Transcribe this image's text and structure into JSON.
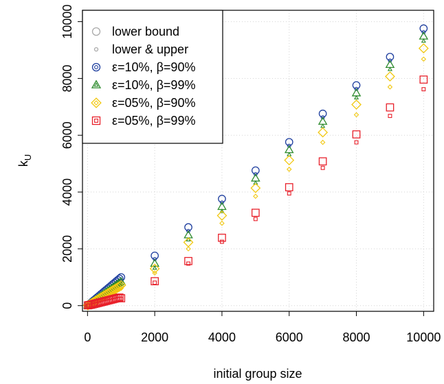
{
  "chart_data": {
    "type": "scatter",
    "xlabel": "initial group size",
    "ylabel": "k",
    "ylabel_sub": "U",
    "xlim": [
      -150,
      10300
    ],
    "ylim": [
      -200,
      10400
    ],
    "x_ticks": [
      0,
      2000,
      4000,
      6000,
      8000,
      10000
    ],
    "x_tick_labels": [
      "0",
      "2000",
      "4000",
      "6000",
      "8000",
      "10000"
    ],
    "y_ticks": [
      0,
      2000,
      4000,
      6000,
      8000,
      10000
    ],
    "y_tick_labels": [
      "0",
      "2000",
      "4000",
      "6000",
      "8000",
      "10000"
    ],
    "grid": true,
    "legend_position": "top-left",
    "x": [
      10,
      50,
      100,
      150,
      200,
      250,
      300,
      350,
      400,
      450,
      500,
      550,
      600,
      650,
      700,
      750,
      800,
      850,
      900,
      950,
      1000,
      2000,
      3000,
      4000,
      5000,
      6000,
      7000,
      8000,
      9000,
      10000
    ],
    "legend": [
      {
        "label": "lower bound",
        "color": "#aaaaaa",
        "marker": "circle"
      },
      {
        "label": "lower & upper",
        "color": "#aaaaaa",
        "marker": "small-circle"
      },
      {
        "label": "ε=10%, β=90%",
        "color": "#1f3f9f",
        "marker": "double-circle"
      },
      {
        "label": "ε=10%, β=99%",
        "color": "#2e8b2e",
        "marker": "double-triangle"
      },
      {
        "label": "ε=05%, β=90%",
        "color": "#f2c811",
        "marker": "double-diamond"
      },
      {
        "label": "ε=05%, β=99%",
        "color": "#e8202a",
        "marker": "double-square"
      }
    ],
    "series": [
      {
        "name": "ε=10%, β=90%",
        "color": "#1f3f9f",
        "marker": "circle",
        "lower": [
          0,
          5,
          30,
          68,
          110,
          156,
          202,
          248,
          296,
          343,
          390,
          437,
          486,
          534,
          582,
          630,
          678,
          726,
          775,
          823,
          871,
          1638,
          2630,
          3630,
          4630,
          5630,
          6630,
          7630,
          8630,
          9630
        ],
        "upper": [
          10,
          50,
          100,
          150,
          200,
          250,
          300,
          350,
          400,
          450,
          500,
          550,
          600,
          650,
          700,
          750,
          800,
          850,
          900,
          950,
          1000,
          1760,
          2760,
          3760,
          4760,
          5760,
          6760,
          7760,
          8760,
          9760
        ]
      },
      {
        "name": "ε=10%, β=99%",
        "color": "#2e8b2e",
        "marker": "triangle",
        "lower": [
          0,
          3,
          22,
          52,
          88,
          126,
          166,
          206,
          247,
          288,
          330,
          372,
          414,
          457,
          500,
          543,
          586,
          629,
          673,
          716,
          760,
          1320,
          2320,
          3320,
          4320,
          5320,
          6320,
          7320,
          8320,
          9320
        ],
        "upper": [
          10,
          42,
          84,
          126,
          168,
          210,
          252,
          294,
          336,
          378,
          420,
          462,
          504,
          546,
          588,
          630,
          672,
          714,
          756,
          798,
          840,
          1480,
          2480,
          3480,
          4480,
          5480,
          6480,
          7480,
          8480,
          9480
        ]
      },
      {
        "name": "ε=05%, β=90%",
        "color": "#f2c811",
        "marker": "diamond",
        "lower": [
          0,
          2,
          18,
          42,
          70,
          100,
          130,
          162,
          194,
          227,
          260,
          294,
          328,
          362,
          397,
          432,
          467,
          503,
          539,
          575,
          610,
          1150,
          2000,
          2900,
          3850,
          4800,
          5750,
          6720,
          7700,
          8680
        ],
        "upper": [
          10,
          36,
          72,
          108,
          144,
          180,
          216,
          252,
          288,
          324,
          360,
          396,
          432,
          468,
          504,
          540,
          576,
          612,
          648,
          684,
          720,
          1300,
          2230,
          3170,
          4140,
          5120,
          6100,
          7080,
          8070,
          9060
        ]
      },
      {
        "name": "ε=05%, β=99%",
        "color": "#e8202a",
        "marker": "square",
        "lower": [
          0,
          1,
          8,
          20,
          34,
          48,
          62,
          76,
          90,
          104,
          118,
          132,
          146,
          160,
          174,
          188,
          202,
          216,
          230,
          244,
          240,
          810,
          1480,
          2250,
          3050,
          3950,
          4850,
          5750,
          6680,
          7620
        ],
        "upper": [
          10,
          20,
          30,
          45,
          60,
          75,
          90,
          105,
          120,
          135,
          150,
          165,
          180,
          195,
          210,
          225,
          240,
          255,
          270,
          285,
          260,
          860,
          1570,
          2390,
          3270,
          4170,
          5080,
          6030,
          6980,
          7960
        ]
      }
    ]
  }
}
